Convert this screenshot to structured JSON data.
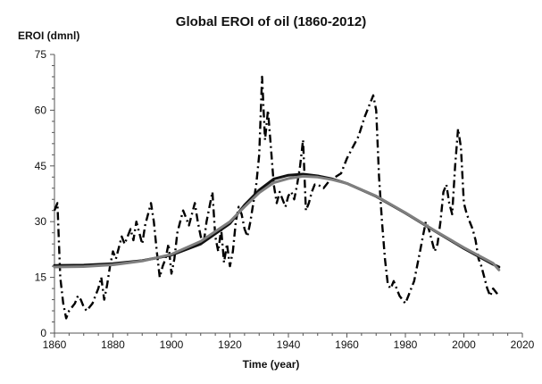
{
  "chart_data": {
    "type": "line",
    "title": "Global EROI of oil (1860-2012)",
    "xlabel": "Time (year)",
    "ylabel": "EROI (dmnl)",
    "xlim": [
      1860,
      2020
    ],
    "ylim": [
      0,
      75
    ],
    "xticks": [
      "1860",
      "1880",
      "1900",
      "1920",
      "1940",
      "1960",
      "1980",
      "2000",
      "2020"
    ],
    "yticks": [
      "0",
      "15",
      "30",
      "45",
      "60",
      "75"
    ],
    "grid": false,
    "legend": "none",
    "series": [
      {
        "style": "dash-dot",
        "color": "#000000",
        "x": [
          1860,
          1861,
          1862,
          1863,
          1864,
          1865,
          1866,
          1867,
          1868,
          1869,
          1870,
          1871,
          1872,
          1873,
          1874,
          1875,
          1876,
          1877,
          1878,
          1879,
          1880,
          1881,
          1882,
          1883,
          1884,
          1885,
          1886,
          1887,
          1888,
          1889,
          1890,
          1891,
          1892,
          1893,
          1894,
          1895,
          1896,
          1897,
          1898,
          1899,
          1900,
          1901,
          1902,
          1903,
          1904,
          1905,
          1906,
          1907,
          1908,
          1909,
          1910,
          1911,
          1912,
          1913,
          1914,
          1915,
          1916,
          1917,
          1918,
          1919,
          1920,
          1921,
          1922,
          1923,
          1924,
          1925,
          1926,
          1927,
          1928,
          1929,
          1930,
          1931,
          1932,
          1933,
          1934,
          1935,
          1936,
          1937,
          1938,
          1939,
          1940,
          1941,
          1942,
          1943,
          1944,
          1945,
          1946,
          1947,
          1948,
          1949,
          1950,
          1952,
          1954,
          1956,
          1958,
          1960,
          1962,
          1964,
          1966,
          1968,
          1969,
          1970,
          1971,
          1972,
          1973,
          1974,
          1975,
          1976,
          1977,
          1978,
          1979,
          1980,
          1981,
          1982,
          1983,
          1984,
          1985,
          1986,
          1987,
          1988,
          1989,
          1990,
          1991,
          1992,
          1993,
          1994,
          1995,
          1996,
          1997,
          1998,
          1999,
          2000,
          2001,
          2002,
          2003,
          2004,
          2005,
          2006,
          2007,
          2008,
          2009,
          2010,
          2011,
          2012
        ],
        "y": [
          33,
          35,
          15,
          8,
          4,
          6,
          7,
          8,
          10,
          9,
          7,
          6,
          7,
          8,
          10,
          12,
          15,
          9,
          13,
          18,
          22,
          20,
          23,
          26,
          24,
          26,
          28,
          25,
          30,
          27,
          24,
          29,
          32,
          35,
          30,
          22,
          15,
          18,
          20,
          24,
          16,
          20,
          27,
          30,
          33,
          31,
          29,
          32,
          35,
          30,
          26,
          24,
          30,
          34,
          38,
          26,
          22,
          28,
          19,
          24,
          18,
          22,
          30,
          34,
          32,
          28,
          26,
          30,
          35,
          40,
          48,
          69,
          52,
          60,
          50,
          40,
          35,
          38,
          36,
          34,
          37,
          38,
          36,
          40,
          45,
          52,
          33,
          35,
          38,
          40,
          40,
          39,
          41,
          42,
          43,
          47,
          50,
          53,
          58,
          62,
          64,
          60,
          42,
          30,
          20,
          13,
          12,
          14,
          12,
          10,
          9,
          8,
          10,
          12,
          14,
          18,
          22,
          26,
          30,
          28,
          25,
          22,
          24,
          30,
          38,
          40,
          35,
          32,
          45,
          55,
          50,
          35,
          32,
          30,
          28,
          25,
          20,
          18,
          15,
          12,
          10,
          12,
          11,
          10
        ]
      },
      {
        "style": "solid",
        "color": "#111111",
        "x": [
          1860,
          1870,
          1880,
          1890,
          1900,
          1910,
          1920,
          1925,
          1930,
          1935,
          1940,
          1945,
          1950,
          1955,
          1960,
          1970,
          1980,
          1990,
          2000,
          2010,
          2012
        ],
        "y": [
          18.2,
          18.3,
          18.7,
          19.5,
          21.0,
          24.0,
          29.5,
          34.5,
          38.5,
          41.5,
          42.5,
          42.8,
          42.3,
          41.5,
          40.3,
          36.8,
          32.3,
          27.5,
          22.8,
          18.5,
          17.8
        ]
      },
      {
        "style": "solid",
        "color": "#7f7f7f",
        "x": [
          1860,
          1870,
          1880,
          1890,
          1900,
          1910,
          1920,
          1925,
          1930,
          1935,
          1940,
          1945,
          1950,
          1955,
          1960,
          1970,
          1980,
          1990,
          2000,
          2010,
          2012
        ],
        "y": [
          17.8,
          17.9,
          18.4,
          19.4,
          21.2,
          24.7,
          30.0,
          34.0,
          37.8,
          40.5,
          41.6,
          42.2,
          42.0,
          41.3,
          40.3,
          36.9,
          32.4,
          27.6,
          23.0,
          18.8,
          17.0
        ]
      }
    ]
  }
}
